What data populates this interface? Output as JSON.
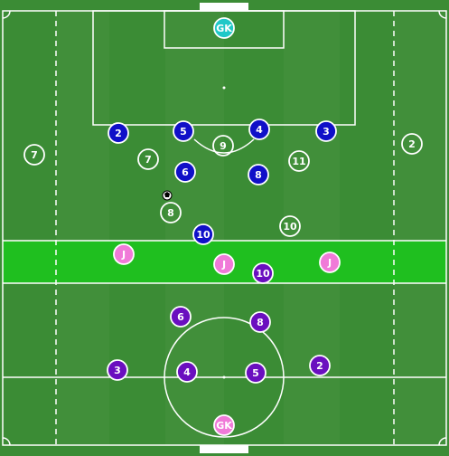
{
  "colors": {
    "grass": "#3b8c35",
    "grass_stripe": "#418f3a",
    "highlight_band": "#1fbf1f",
    "line": "#ffffff",
    "blue_team": "#1010c8",
    "purple_team": "#6a0fbf",
    "joker": "#f07ad8",
    "goalkeeper_top": "#20c8c8",
    "goalkeeper_bottom": "#f07ad8"
  },
  "goalkeepers": [
    {
      "label": "GK",
      "team": "goalkeeper_top"
    },
    {
      "label": "GK",
      "team": "goalkeeper_bottom"
    }
  ],
  "blue_players": [
    "2",
    "5",
    "4",
    "3",
    "6",
    "8",
    "10"
  ],
  "white_players": [
    "7",
    "9",
    "2",
    "7",
    "11",
    "8",
    "10"
  ],
  "purple_players": [
    "10",
    "6",
    "8",
    "3",
    "4",
    "5",
    "2"
  ],
  "jokers": [
    "J",
    "J",
    "J"
  ],
  "ball_icon": "football-icon"
}
